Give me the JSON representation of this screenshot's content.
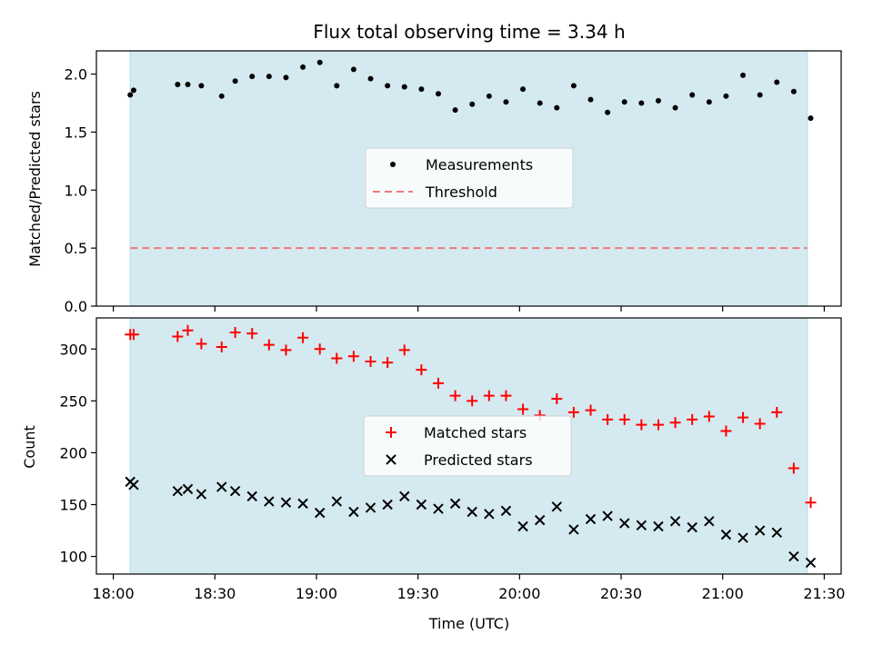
{
  "chart_data": {
    "title": "Flux total observing time = 3.34 h",
    "xlabel": "Time (UTC)",
    "x_tick_labels": [
      "18:00",
      "18:30",
      "19:00",
      "19:30",
      "20:00",
      "20:30",
      "21:00",
      "21:30"
    ],
    "x_ticks_minutes": [
      0,
      30,
      60,
      90,
      120,
      150,
      180,
      210
    ],
    "x_range_minutes": [
      -5,
      215
    ],
    "shaded_span_minutes": [
      5,
      205
    ],
    "shade_color": "#d4eaf0",
    "panels": [
      {
        "type": "scatter",
        "ylabel": "Matched/Predicted stars",
        "ylim": [
          0,
          2.2
        ],
        "y_ticks": [
          0.0,
          0.5,
          1.0,
          1.5,
          2.0
        ],
        "y_tick_labels": [
          "0.0",
          "0.5",
          "1.0",
          "1.5",
          "2.0"
        ],
        "legend_position": "center",
        "series": [
          {
            "name": "Measurements",
            "marker": "dot",
            "color": "#000000",
            "points": [
              [
                5,
                1.82
              ],
              [
                6,
                1.86
              ],
              [
                19,
                1.91
              ],
              [
                22,
                1.91
              ],
              [
                26,
                1.9
              ],
              [
                32,
                1.81
              ],
              [
                36,
                1.94
              ],
              [
                41,
                1.98
              ],
              [
                46,
                1.98
              ],
              [
                51,
                1.97
              ],
              [
                56,
                2.06
              ],
              [
                61,
                2.1
              ],
              [
                66,
                1.9
              ],
              [
                71,
                2.04
              ],
              [
                76,
                1.96
              ],
              [
                81,
                1.9
              ],
              [
                86,
                1.89
              ],
              [
                91,
                1.87
              ],
              [
                96,
                1.83
              ],
              [
                101,
                1.69
              ],
              [
                106,
                1.74
              ],
              [
                111,
                1.81
              ],
              [
                116,
                1.76
              ],
              [
                121,
                1.87
              ],
              [
                126,
                1.75
              ],
              [
                131,
                1.71
              ],
              [
                136,
                1.9
              ],
              [
                141,
                1.78
              ],
              [
                146,
                1.67
              ],
              [
                151,
                1.76
              ],
              [
                156,
                1.75
              ],
              [
                161,
                1.77
              ],
              [
                166,
                1.71
              ],
              [
                171,
                1.82
              ],
              [
                176,
                1.76
              ],
              [
                181,
                1.81
              ],
              [
                186,
                1.99
              ],
              [
                191,
                1.82
              ],
              [
                196,
                1.93
              ],
              [
                201,
                1.85
              ],
              [
                206,
                1.62
              ]
            ]
          },
          {
            "name": "Threshold",
            "style": "dashed",
            "color": "#f07878",
            "points": [
              [
                5,
                0.5
              ],
              [
                205,
                0.5
              ]
            ]
          }
        ]
      },
      {
        "type": "scatter",
        "ylabel": "Count",
        "ylim": [
          83,
          330
        ],
        "y_ticks": [
          100,
          150,
          200,
          250,
          300
        ],
        "y_tick_labels": [
          "100",
          "150",
          "200",
          "250",
          "300"
        ],
        "legend_position": "center",
        "series": [
          {
            "name": "Matched stars",
            "marker": "plus",
            "color": "#ff0000",
            "points": [
              [
                5,
                314
              ],
              [
                6,
                314
              ],
              [
                19,
                312
              ],
              [
                22,
                318
              ],
              [
                26,
                305
              ],
              [
                32,
                302
              ],
              [
                36,
                316
              ],
              [
                41,
                315
              ],
              [
                46,
                304
              ],
              [
                51,
                299
              ],
              [
                56,
                311
              ],
              [
                61,
                300
              ],
              [
                66,
                291
              ],
              [
                71,
                293
              ],
              [
                76,
                288
              ],
              [
                81,
                287
              ],
              [
                86,
                299
              ],
              [
                91,
                280
              ],
              [
                96,
                267
              ],
              [
                101,
                255
              ],
              [
                106,
                250
              ],
              [
                111,
                255
              ],
              [
                116,
                255
              ],
              [
                121,
                242
              ],
              [
                126,
                236
              ],
              [
                131,
                252
              ],
              [
                136,
                239
              ],
              [
                141,
                241
              ],
              [
                146,
                232
              ],
              [
                151,
                232
              ],
              [
                156,
                227
              ],
              [
                161,
                227
              ],
              [
                166,
                229
              ],
              [
                171,
                232
              ],
              [
                176,
                235
              ],
              [
                181,
                221
              ],
              [
                186,
                234
              ],
              [
                191,
                228
              ],
              [
                196,
                239
              ],
              [
                201,
                185
              ],
              [
                206,
                152
              ]
            ]
          },
          {
            "name": "Predicted stars",
            "marker": "x",
            "color": "#000000",
            "points": [
              [
                5,
                172
              ],
              [
                6,
                169
              ],
              [
                19,
                163
              ],
              [
                22,
                165
              ],
              [
                26,
                160
              ],
              [
                32,
                167
              ],
              [
                36,
                163
              ],
              [
                41,
                158
              ],
              [
                46,
                153
              ],
              [
                51,
                152
              ],
              [
                56,
                151
              ],
              [
                61,
                142
              ],
              [
                66,
                153
              ],
              [
                71,
                143
              ],
              [
                76,
                147
              ],
              [
                81,
                150
              ],
              [
                86,
                158
              ],
              [
                91,
                150
              ],
              [
                96,
                146
              ],
              [
                101,
                151
              ],
              [
                106,
                143
              ],
              [
                111,
                141
              ],
              [
                116,
                144
              ],
              [
                121,
                129
              ],
              [
                126,
                135
              ],
              [
                131,
                148
              ],
              [
                136,
                126
              ],
              [
                141,
                136
              ],
              [
                146,
                139
              ],
              [
                151,
                132
              ],
              [
                156,
                130
              ],
              [
                161,
                129
              ],
              [
                166,
                134
              ],
              [
                171,
                128
              ],
              [
                176,
                134
              ],
              [
                181,
                121
              ],
              [
                186,
                118
              ],
              [
                191,
                125
              ],
              [
                196,
                123
              ],
              [
                201,
                100
              ],
              [
                206,
                94
              ]
            ]
          }
        ]
      }
    ]
  }
}
